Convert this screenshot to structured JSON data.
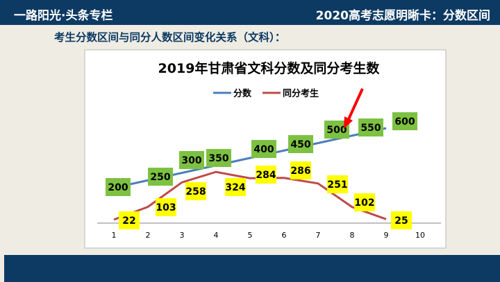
{
  "header": {
    "left": "一路阳光·头条专栏",
    "right": "2020高考志愿明晰卡：分数区间"
  },
  "subtitle": "考生分数区间与同分人数区间变化关系（文科）：",
  "chart_data": {
    "type": "line",
    "title": "2019年甘肃省文科分数及同分考生数",
    "legend_position": "top",
    "x": [
      1,
      2,
      3,
      4,
      5,
      6,
      7,
      8,
      9
    ],
    "x_ticks": [
      "1",
      "2",
      "3",
      "4",
      "5",
      "6",
      "7",
      "8",
      "9",
      "10"
    ],
    "series": [
      {
        "name": "分数",
        "color": "#4a7ebb",
        "label_bg": "#7dc142",
        "values": [
          200,
          250,
          300,
          350,
          400,
          450,
          500,
          550,
          600
        ]
      },
      {
        "name": "同分考生",
        "color": "#be4b48",
        "label_bg": "#ffff00",
        "values": [
          22,
          103,
          258,
          324,
          284,
          286,
          251,
          102,
          25
        ]
      }
    ],
    "annotation": {
      "type": "red-arrow",
      "points_to": "500",
      "color": "#ff0000"
    }
  }
}
